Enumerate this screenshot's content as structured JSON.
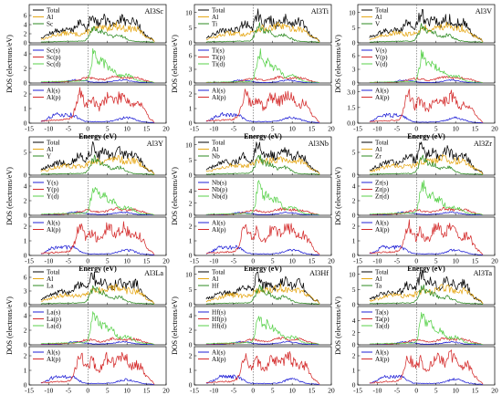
{
  "colors": {
    "total": "#000000",
    "al": "#e6a817",
    "x": "#2e8b22",
    "s": "#1f1fd6",
    "p": "#d42b2b",
    "d": "#58d14a"
  },
  "common": {
    "xlabel": "Energy (eV)",
    "ylabel": "DOS (electrons/eV)",
    "xticks": [
      "-15",
      "-10",
      "-5",
      "0",
      "5",
      "10",
      "15",
      "20"
    ]
  },
  "chart_data": [
    {
      "type": "line",
      "title": "Al3Sc",
      "element": "Sc",
      "xlim": [
        -15,
        20
      ],
      "top": {
        "legend": [
          "Total",
          "Al",
          "Sc"
        ],
        "yticks": [
          "0",
          "2",
          "4",
          "6"
        ],
        "ylim": [
          0,
          8
        ]
      },
      "mid": {
        "legend": [
          "Sc(s)",
          "Sc(p)",
          "Sc(d)"
        ],
        "yticks": [
          "0",
          "2",
          "4"
        ],
        "ylim": [
          0,
          5
        ]
      },
      "bot": {
        "legend": [
          "Al(s)",
          "Al(p)"
        ],
        "yticks": [
          "0",
          "1",
          "2"
        ],
        "ylim": [
          0,
          2.5
        ]
      }
    },
    {
      "type": "line",
      "title": "Al3Ti",
      "element": "Ti",
      "xlim": [
        -15,
        20
      ],
      "top": {
        "legend": [
          "Total",
          "Al",
          "Ti"
        ],
        "yticks": [
          "0",
          "5",
          "10"
        ],
        "ylim": [
          0,
          12
        ]
      },
      "mid": {
        "legend": [
          "Ti(s)",
          "Ti(p)",
          "Ti(d)"
        ],
        "yticks": [
          "0",
          "3",
          "6"
        ],
        "ylim": [
          0,
          8
        ]
      },
      "bot": {
        "legend": [
          "Al(s)",
          "Al(p)"
        ],
        "yticks": [
          "0",
          "1",
          "2"
        ],
        "ylim": [
          0,
          2.5
        ]
      }
    },
    {
      "type": "line",
      "title": "Al3V",
      "element": "V",
      "xlim": [
        -15,
        20
      ],
      "top": {
        "legend": [
          "Total",
          "Al",
          "V"
        ],
        "yticks": [
          "0",
          "5",
          "10"
        ],
        "ylim": [
          0,
          12
        ]
      },
      "mid": {
        "legend": [
          "V(s)",
          "V(p)",
          "V(d)"
        ],
        "yticks": [
          "0",
          "3",
          "6"
        ],
        "ylim": [
          0,
          8
        ]
      },
      "bot": {
        "legend": [
          "Al(s)",
          "Al(p)"
        ],
        "yticks": [
          "0.0",
          "1.5",
          "3.0"
        ],
        "ylim": [
          0,
          3.5
        ]
      }
    },
    {
      "type": "line",
      "title": "Al3Y",
      "element": "Y",
      "xlim": [
        -15,
        20
      ],
      "top": {
        "legend": [
          "Total",
          "Al",
          "Y"
        ],
        "yticks": [
          "0",
          "5"
        ],
        "ylim": [
          0,
          8
        ]
      },
      "mid": {
        "legend": [
          "Y(s)",
          "Y(p)",
          "Y(d)"
        ],
        "yticks": [
          "0",
          "2",
          "4"
        ],
        "ylim": [
          0,
          5
        ]
      },
      "bot": {
        "legend": [
          "Al(s)",
          "Al(p)"
        ],
        "yticks": [
          "0",
          "1",
          "2"
        ],
        "ylim": [
          0,
          2.5
        ]
      }
    },
    {
      "type": "line",
      "title": "Al3Nb",
      "element": "Nb",
      "xlim": [
        -15,
        20
      ],
      "top": {
        "legend": [
          "Total",
          "Al",
          "Nb"
        ],
        "yticks": [
          "0",
          "5",
          "10"
        ],
        "ylim": [
          0,
          12
        ]
      },
      "mid": {
        "legend": [
          "Nb(s)",
          "Nb(p)",
          "Nb(d)"
        ],
        "yticks": [
          "0",
          "2",
          "4"
        ],
        "ylim": [
          0,
          6
        ]
      },
      "bot": {
        "legend": [
          "Al(s)",
          "Al(p)"
        ],
        "yticks": [
          "0",
          "1",
          "2"
        ],
        "ylim": [
          0,
          2.5
        ]
      }
    },
    {
      "type": "line",
      "title": "Al3Zr",
      "element": "Zr",
      "xlim": [
        -15,
        20
      ],
      "top": {
        "legend": [
          "Total",
          "Al",
          "Zr"
        ],
        "yticks": [
          "0",
          "5"
        ],
        "ylim": [
          0,
          8
        ]
      },
      "mid": {
        "legend": [
          "Zr(s)",
          "Zr(p)",
          "Zr(d)"
        ],
        "yticks": [
          "0",
          "2",
          "4"
        ],
        "ylim": [
          0,
          5
        ]
      },
      "bot": {
        "legend": [
          "Al(s)",
          "Al(p)"
        ],
        "yticks": [
          "0",
          "1",
          "2"
        ],
        "ylim": [
          0,
          2.5
        ]
      }
    },
    {
      "type": "line",
      "title": "Al3La",
      "element": "La",
      "xlim": [
        -15,
        20
      ],
      "top": {
        "legend": [
          "Total",
          "Al",
          "La"
        ],
        "yticks": [
          "0",
          "3",
          "6"
        ],
        "ylim": [
          0,
          8
        ]
      },
      "mid": {
        "legend": [
          "La(s)",
          "La(p)",
          "La(d)"
        ],
        "yticks": [
          "0",
          "2",
          "4"
        ],
        "ylim": [
          0,
          5
        ]
      },
      "bot": {
        "legend": [
          "Al(s)",
          "Al(p)"
        ],
        "yticks": [
          "0",
          "1",
          "2"
        ],
        "ylim": [
          0,
          2.5
        ]
      }
    },
    {
      "type": "line",
      "title": "Al3Hf",
      "element": "Hf",
      "xlim": [
        -15,
        20
      ],
      "top": {
        "legend": [
          "Total",
          "Al",
          "Hf"
        ],
        "yticks": [
          "0",
          "5",
          "10"
        ],
        "ylim": [
          0,
          12
        ]
      },
      "mid": {
        "legend": [
          "Hf(s)",
          "Hf(p)",
          "Hf(d)"
        ],
        "yticks": [
          "0",
          "2",
          "4"
        ],
        "ylim": [
          0,
          5
        ]
      },
      "bot": {
        "legend": [
          "Al(s)",
          "Al(p)"
        ],
        "yticks": [
          "0",
          "1",
          "2"
        ],
        "ylim": [
          0,
          2.5
        ]
      }
    },
    {
      "type": "line",
      "title": "Al3Ta",
      "element": "Ta",
      "xlim": [
        -15,
        20
      ],
      "top": {
        "legend": [
          "Total",
          "Al",
          "Ta"
        ],
        "yticks": [
          "0",
          "5",
          "10"
        ],
        "ylim": [
          0,
          12
        ]
      },
      "mid": {
        "legend": [
          "Ta(s)",
          "Ta(p)",
          "Ta(d)"
        ],
        "yticks": [
          "0",
          "2",
          "4"
        ],
        "ylim": [
          0,
          6
        ]
      },
      "bot": {
        "legend": [
          "Al(s)",
          "Al(p)"
        ],
        "yticks": [
          "0",
          "1",
          "2"
        ],
        "ylim": [
          0,
          2.5
        ]
      }
    }
  ]
}
